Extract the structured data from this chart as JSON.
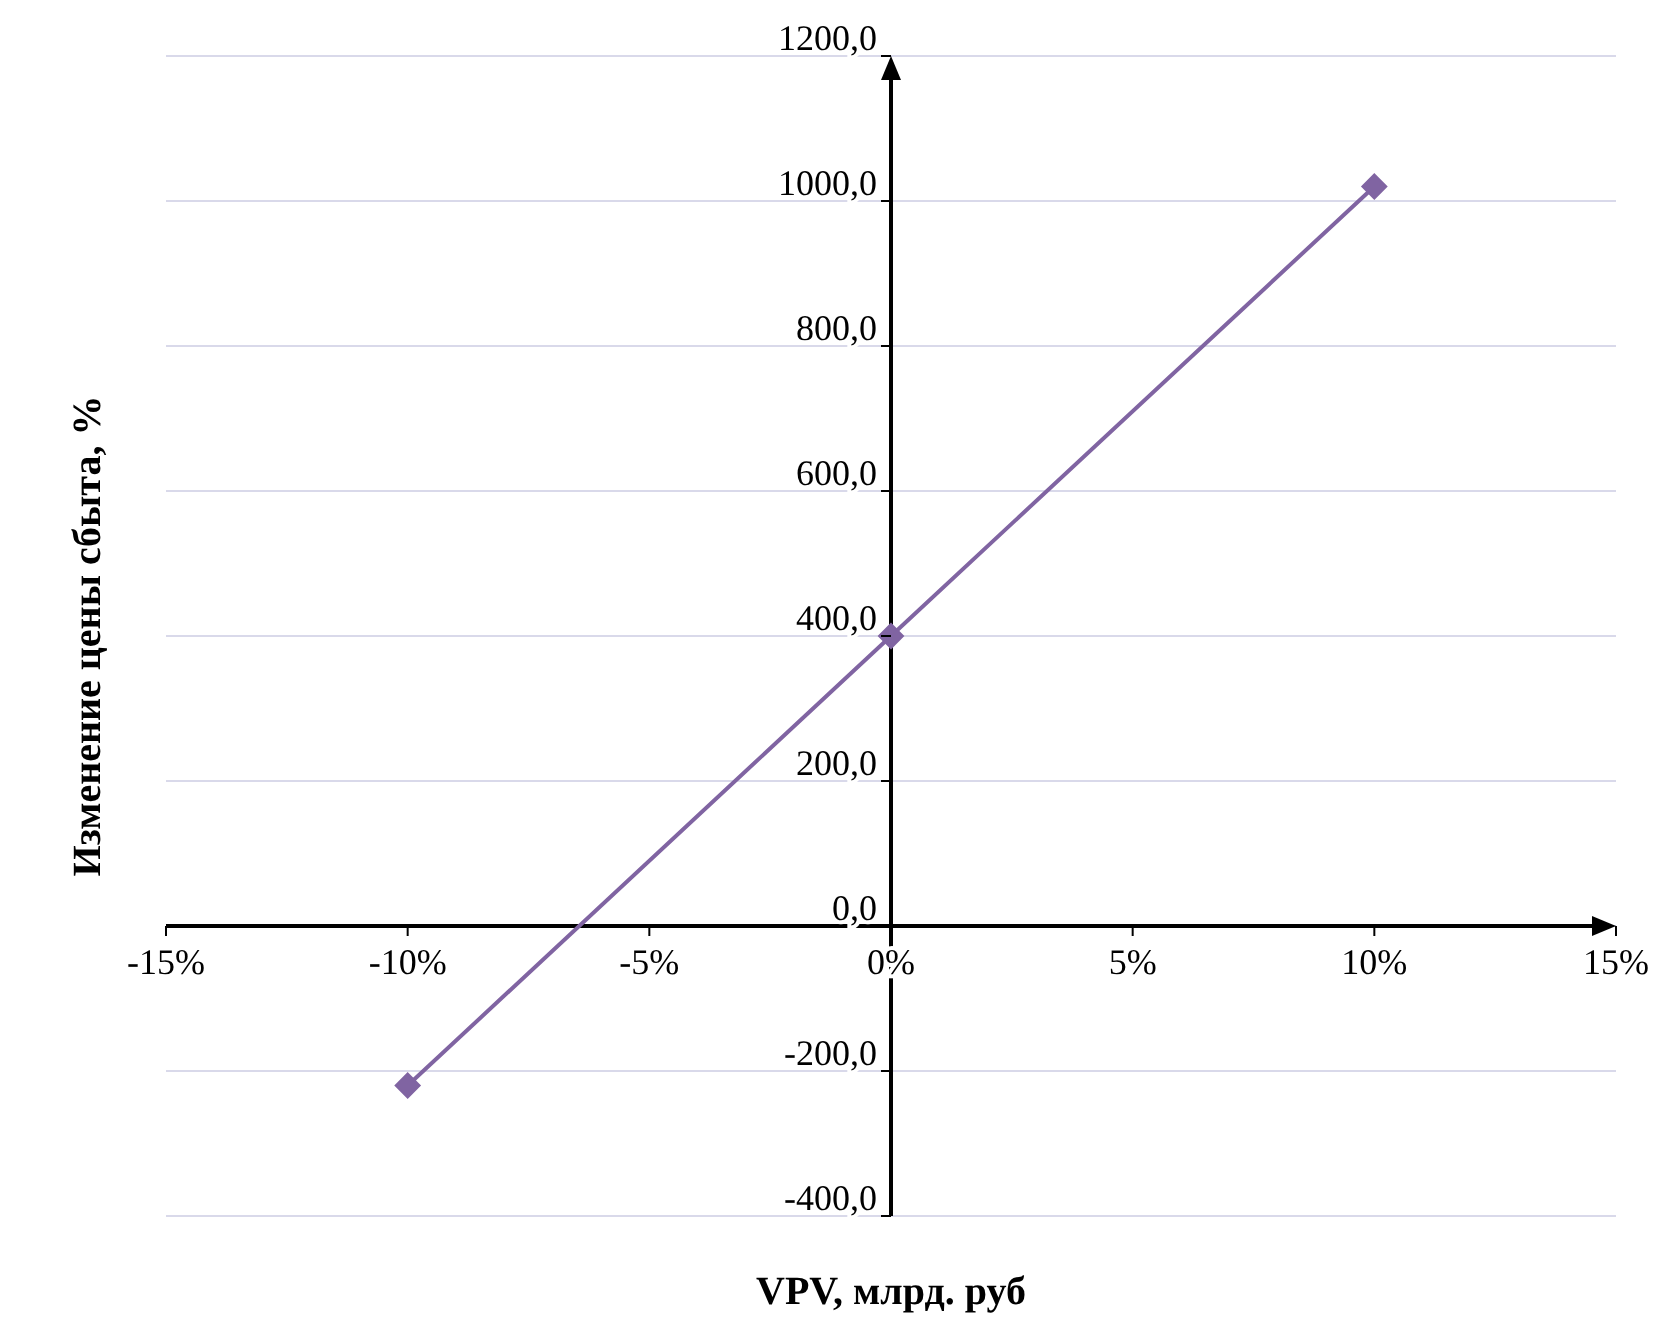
{
  "chart_data": {
    "type": "line",
    "xlabel": "VPV, млрд. руб",
    "ylabel": "Изменение цены сбыта, %",
    "x": [
      -10,
      0,
      10
    ],
    "series": [
      {
        "color": "#8064a2",
        "values": [
          -220,
          400,
          1020
        ]
      }
    ],
    "xlim": [
      -15,
      15
    ],
    "xticks": [
      {
        "value": -15,
        "label": "-15%"
      },
      {
        "value": -10,
        "label": "-10%"
      },
      {
        "value": -5,
        "label": "-5%"
      },
      {
        "value": 0,
        "label": "0%"
      },
      {
        "value": 5,
        "label": "5%"
      },
      {
        "value": 10,
        "label": "10%"
      },
      {
        "value": 15,
        "label": "15%"
      }
    ],
    "ylim": [
      -400,
      1200
    ],
    "yticks": [
      {
        "value": -400,
        "label": "-400,0"
      },
      {
        "value": -200,
        "label": "-200,0"
      },
      {
        "value": 0,
        "label": "0,0"
      },
      {
        "value": 200,
        "label": "200,0"
      },
      {
        "value": 400,
        "label": "400,0"
      },
      {
        "value": 600,
        "label": "600,0"
      },
      {
        "value": 800,
        "label": "800,0"
      },
      {
        "value": 1000,
        "label": "1000,0"
      },
      {
        "value": 1200,
        "label": "1200,0"
      }
    ],
    "grid": "y",
    "legend": false,
    "marker": "diamond",
    "line_style": "solid"
  }
}
